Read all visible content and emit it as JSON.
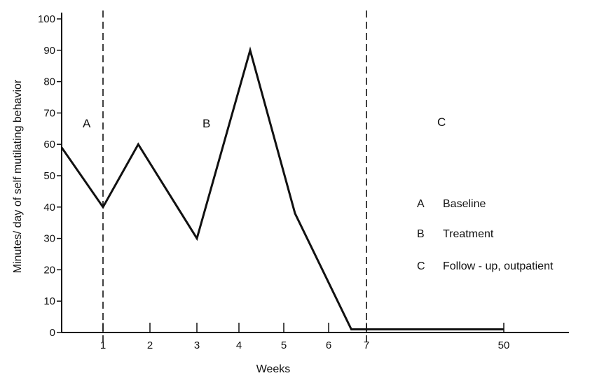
{
  "chart_data": {
    "type": "line",
    "title": "",
    "xlabel": "Weeks",
    "ylabel": "Minutes/ day of self mutilating behavior",
    "ylim": [
      0,
      100
    ],
    "y_ticks": [
      "0",
      "10",
      "20",
      "30",
      "40",
      "50",
      "60",
      "70",
      "80",
      "90",
      "100"
    ],
    "x_ticks": [
      "1",
      "2",
      "3",
      "4",
      "5",
      "6",
      "7",
      "50"
    ],
    "x_ticks_note": "x axis is broken between 7 and 50",
    "series": [
      {
        "name": "",
        "x": [
          0,
          1,
          1.75,
          3,
          4.25,
          5.25,
          6.6,
          7,
          50
        ],
        "y": [
          59,
          40,
          60,
          30,
          90,
          38,
          1,
          1,
          1
        ]
      }
    ],
    "phase_dividers_at_weeks": [
      1,
      7
    ],
    "phases": [
      {
        "code": "A",
        "description": "Baseline"
      },
      {
        "code": "B",
        "description": "Treatment"
      },
      {
        "code": "C",
        "description": "Follow - up, outpatient"
      }
    ],
    "grid": false,
    "legend_placement": "right"
  }
}
